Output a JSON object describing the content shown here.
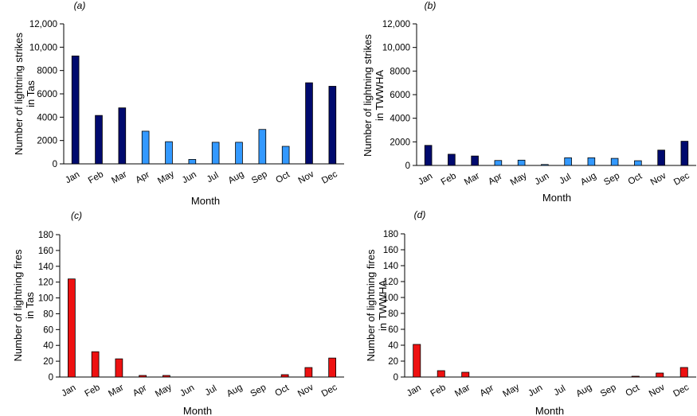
{
  "colors": {
    "dark_blue": "#000a6e",
    "light_blue": "#3399ff",
    "red": "#ee1111"
  },
  "chart_data": [
    {
      "panel": "(a)",
      "type": "bar",
      "categories": [
        "Jan",
        "Feb",
        "Mar",
        "Apr",
        "May",
        "Jun",
        "Jul",
        "Aug",
        "Sep",
        "Oct",
        "Nov",
        "Dec"
      ],
      "values": [
        9250,
        4150,
        4800,
        2800,
        1900,
        380,
        1850,
        1850,
        2950,
        1500,
        6950,
        6650
      ],
      "bar_colors": [
        "dark",
        "dark",
        "dark",
        "light",
        "light",
        "light",
        "light",
        "light",
        "light",
        "light",
        "dark",
        "dark"
      ],
      "ylabel_lines": [
        "Number of lightning strikes",
        "in Tas"
      ],
      "xlabel": "Month",
      "ylim": [
        0,
        12000
      ],
      "yticks": [
        0,
        2000,
        4000,
        6000,
        8000,
        10000,
        12000
      ],
      "ytick_labels": [
        "0",
        "2000",
        "4000",
        "6000",
        "8000",
        "10,000",
        "12,000"
      ]
    },
    {
      "panel": "(b)",
      "type": "bar",
      "categories": [
        "Jan",
        "Feb",
        "Mar",
        "Apr",
        "May",
        "Jun",
        "Jul",
        "Aug",
        "Sep",
        "Oct",
        "Nov",
        "Dec"
      ],
      "values": [
        1700,
        950,
        800,
        420,
        450,
        80,
        650,
        650,
        600,
        400,
        1300,
        2050
      ],
      "bar_colors": [
        "dark",
        "dark",
        "dark",
        "light",
        "light",
        "light",
        "light",
        "light",
        "light",
        "light",
        "dark",
        "dark"
      ],
      "ylabel_lines": [
        "Number of lightning strikes",
        "in TWWHA"
      ],
      "xlabel": "Month",
      "ylim": [
        0,
        12000
      ],
      "yticks": [
        0,
        2000,
        4000,
        6000,
        8000,
        10000,
        12000
      ],
      "ytick_labels": [
        "0",
        "2000",
        "4000",
        "6000",
        "8000",
        "10,000",
        "12,000"
      ]
    },
    {
      "panel": "(c)",
      "type": "bar",
      "categories": [
        "Jan",
        "Feb",
        "Mar",
        "Apr",
        "May",
        "Jun",
        "Jul",
        "Aug",
        "Sep",
        "Oct",
        "Nov",
        "Dec"
      ],
      "values": [
        124,
        32,
        23,
        2,
        2,
        0,
        0,
        0,
        0,
        3,
        12,
        24
      ],
      "bar_colors": [
        "red",
        "red",
        "red",
        "red",
        "red",
        "red",
        "red",
        "red",
        "red",
        "red",
        "red",
        "red"
      ],
      "ylabel_lines": [
        "Number of lightning fires",
        "in Tas"
      ],
      "xlabel": "Month",
      "ylim": [
        0,
        180
      ],
      "yticks": [
        0,
        20,
        40,
        60,
        80,
        100,
        120,
        140,
        160,
        180
      ],
      "ytick_labels": [
        "0",
        "20",
        "40",
        "60",
        "80",
        "100",
        "120",
        "140",
        "160",
        "180"
      ]
    },
    {
      "panel": "(d)",
      "type": "bar",
      "categories": [
        "Jan",
        "Feb",
        "Mar",
        "Apr",
        "May",
        "Jun",
        "Jul",
        "Aug",
        "Sep",
        "Oct",
        "Nov",
        "Dec"
      ],
      "values": [
        41,
        8,
        6,
        0,
        0,
        0,
        0,
        0,
        0,
        1,
        5,
        12
      ],
      "bar_colors": [
        "red",
        "red",
        "red",
        "red",
        "red",
        "red",
        "red",
        "red",
        "red",
        "red",
        "red",
        "red"
      ],
      "ylabel_lines": [
        "Number of lightning fires",
        "in TWWHA"
      ],
      "xlabel": "Month",
      "ylim": [
        0,
        180
      ],
      "yticks": [
        0,
        20,
        40,
        60,
        80,
        100,
        120,
        140,
        160,
        180
      ],
      "ytick_labels": [
        "0",
        "20",
        "40",
        "60",
        "80",
        "100",
        "120",
        "140",
        "160",
        "180"
      ]
    }
  ]
}
